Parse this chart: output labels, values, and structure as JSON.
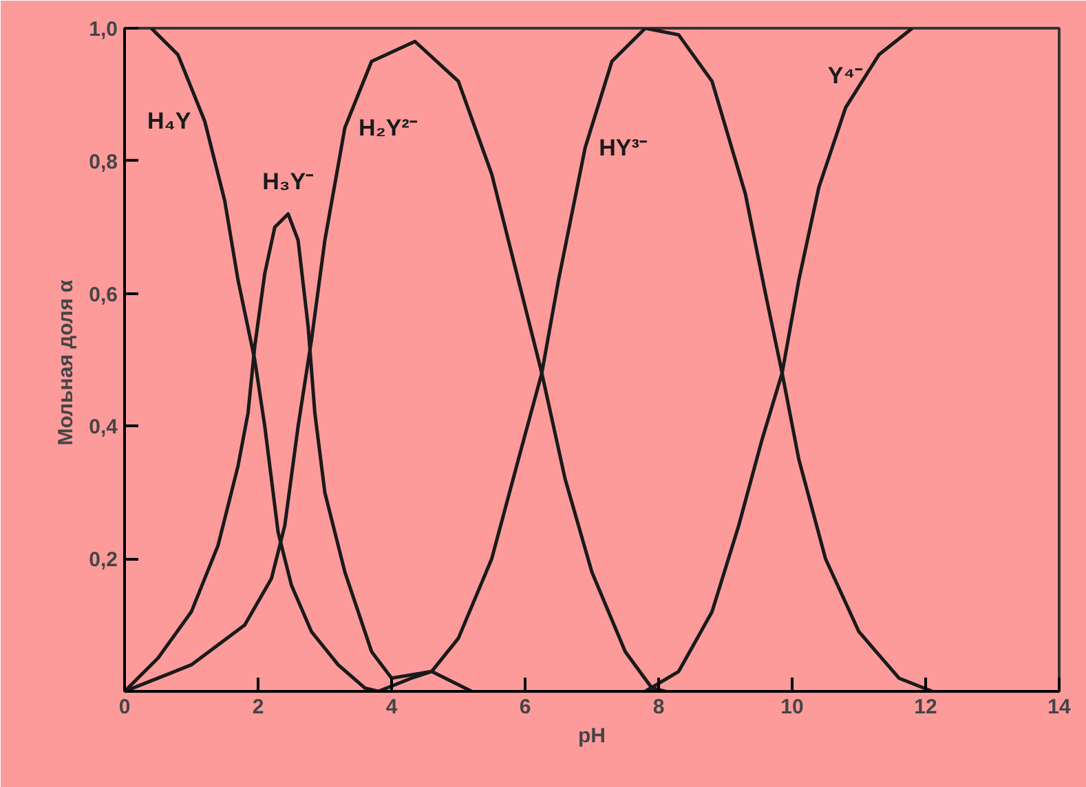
{
  "chart_data": {
    "type": "line",
    "xlabel": "pH",
    "ylabel": "Мольная доля  α",
    "xlim": [
      0,
      14
    ],
    "ylim": [
      0,
      1.0
    ],
    "xticks": [
      0,
      2,
      4,
      6,
      8,
      10,
      12,
      14
    ],
    "yticks": [
      {
        "value": 0.2,
        "label": "0,2"
      },
      {
        "value": 0.4,
        "label": "0,4"
      },
      {
        "value": 0.6,
        "label": "0,6"
      },
      {
        "value": 0.8,
        "label": "0,8"
      },
      {
        "value": 1.0,
        "label": "1,0"
      }
    ],
    "grid": false,
    "marker": "none",
    "line_style": "solid",
    "series": [
      {
        "color": "#1a1a1a",
        "x": [
          0.4,
          0.8,
          1.2,
          1.5,
          1.7,
          1.95,
          2.1,
          2.3,
          2.5,
          2.8,
          3.2,
          3.6,
          3.8
        ],
        "values": [
          1.0,
          0.96,
          0.86,
          0.74,
          0.62,
          0.5,
          0.4,
          0.24,
          0.16,
          0.09,
          0.04,
          0.005,
          0
        ]
      },
      {
        "color": "#1a1a1a",
        "x": [
          0,
          0.5,
          1.0,
          1.4,
          1.7,
          1.85,
          1.95,
          2.1,
          2.25,
          2.45,
          2.6,
          2.75,
          2.85,
          3.0,
          3.3,
          3.7,
          4.0,
          4.3,
          4.6,
          4.9,
          5.2
        ],
        "values": [
          0,
          0.05,
          0.12,
          0.22,
          0.34,
          0.42,
          0.52,
          0.63,
          0.7,
          0.72,
          0.68,
          0.55,
          0.42,
          0.3,
          0.18,
          0.06,
          0.02,
          0.025,
          0.03,
          0.015,
          0
        ]
      },
      {
        "color": "#1a1a1a",
        "x": [
          0,
          1.0,
          1.8,
          2.2,
          2.4,
          2.6,
          2.8,
          3.0,
          3.3,
          3.7,
          4.35,
          5.0,
          5.5,
          5.9,
          6.25,
          6.6,
          7.0,
          7.5,
          7.9,
          8.1
        ],
        "values": [
          0,
          0.04,
          0.1,
          0.17,
          0.25,
          0.4,
          0.53,
          0.68,
          0.85,
          0.95,
          0.98,
          0.92,
          0.78,
          0.62,
          0.48,
          0.32,
          0.18,
          0.06,
          0.005,
          0
        ]
      },
      {
        "color": "#1a1a1a",
        "x": [
          3.8,
          4.3,
          4.6,
          5.0,
          5.5,
          5.9,
          6.25,
          6.5,
          6.9,
          7.3,
          7.8,
          8.3,
          8.8,
          9.3,
          9.6,
          9.85,
          10.1,
          10.5,
          11.0,
          11.6,
          12.1
        ],
        "values": [
          0,
          0.02,
          0.03,
          0.08,
          0.2,
          0.35,
          0.48,
          0.62,
          0.82,
          0.95,
          1.0,
          0.99,
          0.92,
          0.75,
          0.6,
          0.48,
          0.35,
          0.2,
          0.09,
          0.02,
          0
        ]
      },
      {
        "color": "#1a1a1a",
        "x": [
          7.8,
          8.3,
          8.8,
          9.2,
          9.55,
          9.85,
          10.1,
          10.4,
          10.8,
          11.3,
          11.8
        ],
        "values": [
          0,
          0.03,
          0.12,
          0.25,
          0.38,
          0.48,
          0.62,
          0.76,
          0.88,
          0.96,
          1.0
        ]
      }
    ],
    "annotations": [
      {
        "text": "H₄Y",
        "x": 1.2,
        "y": 0.86
      },
      {
        "text": "H₃Y⁻",
        "x": 2.45,
        "y": 0.72
      },
      {
        "text": "H₂Y²⁻",
        "x": 3.3,
        "y": 0.85
      },
      {
        "text": "HY³⁻",
        "x": 6.9,
        "y": 0.82
      },
      {
        "text": "Y⁴⁻",
        "x": 10.8,
        "y": 0.88
      }
    ]
  }
}
